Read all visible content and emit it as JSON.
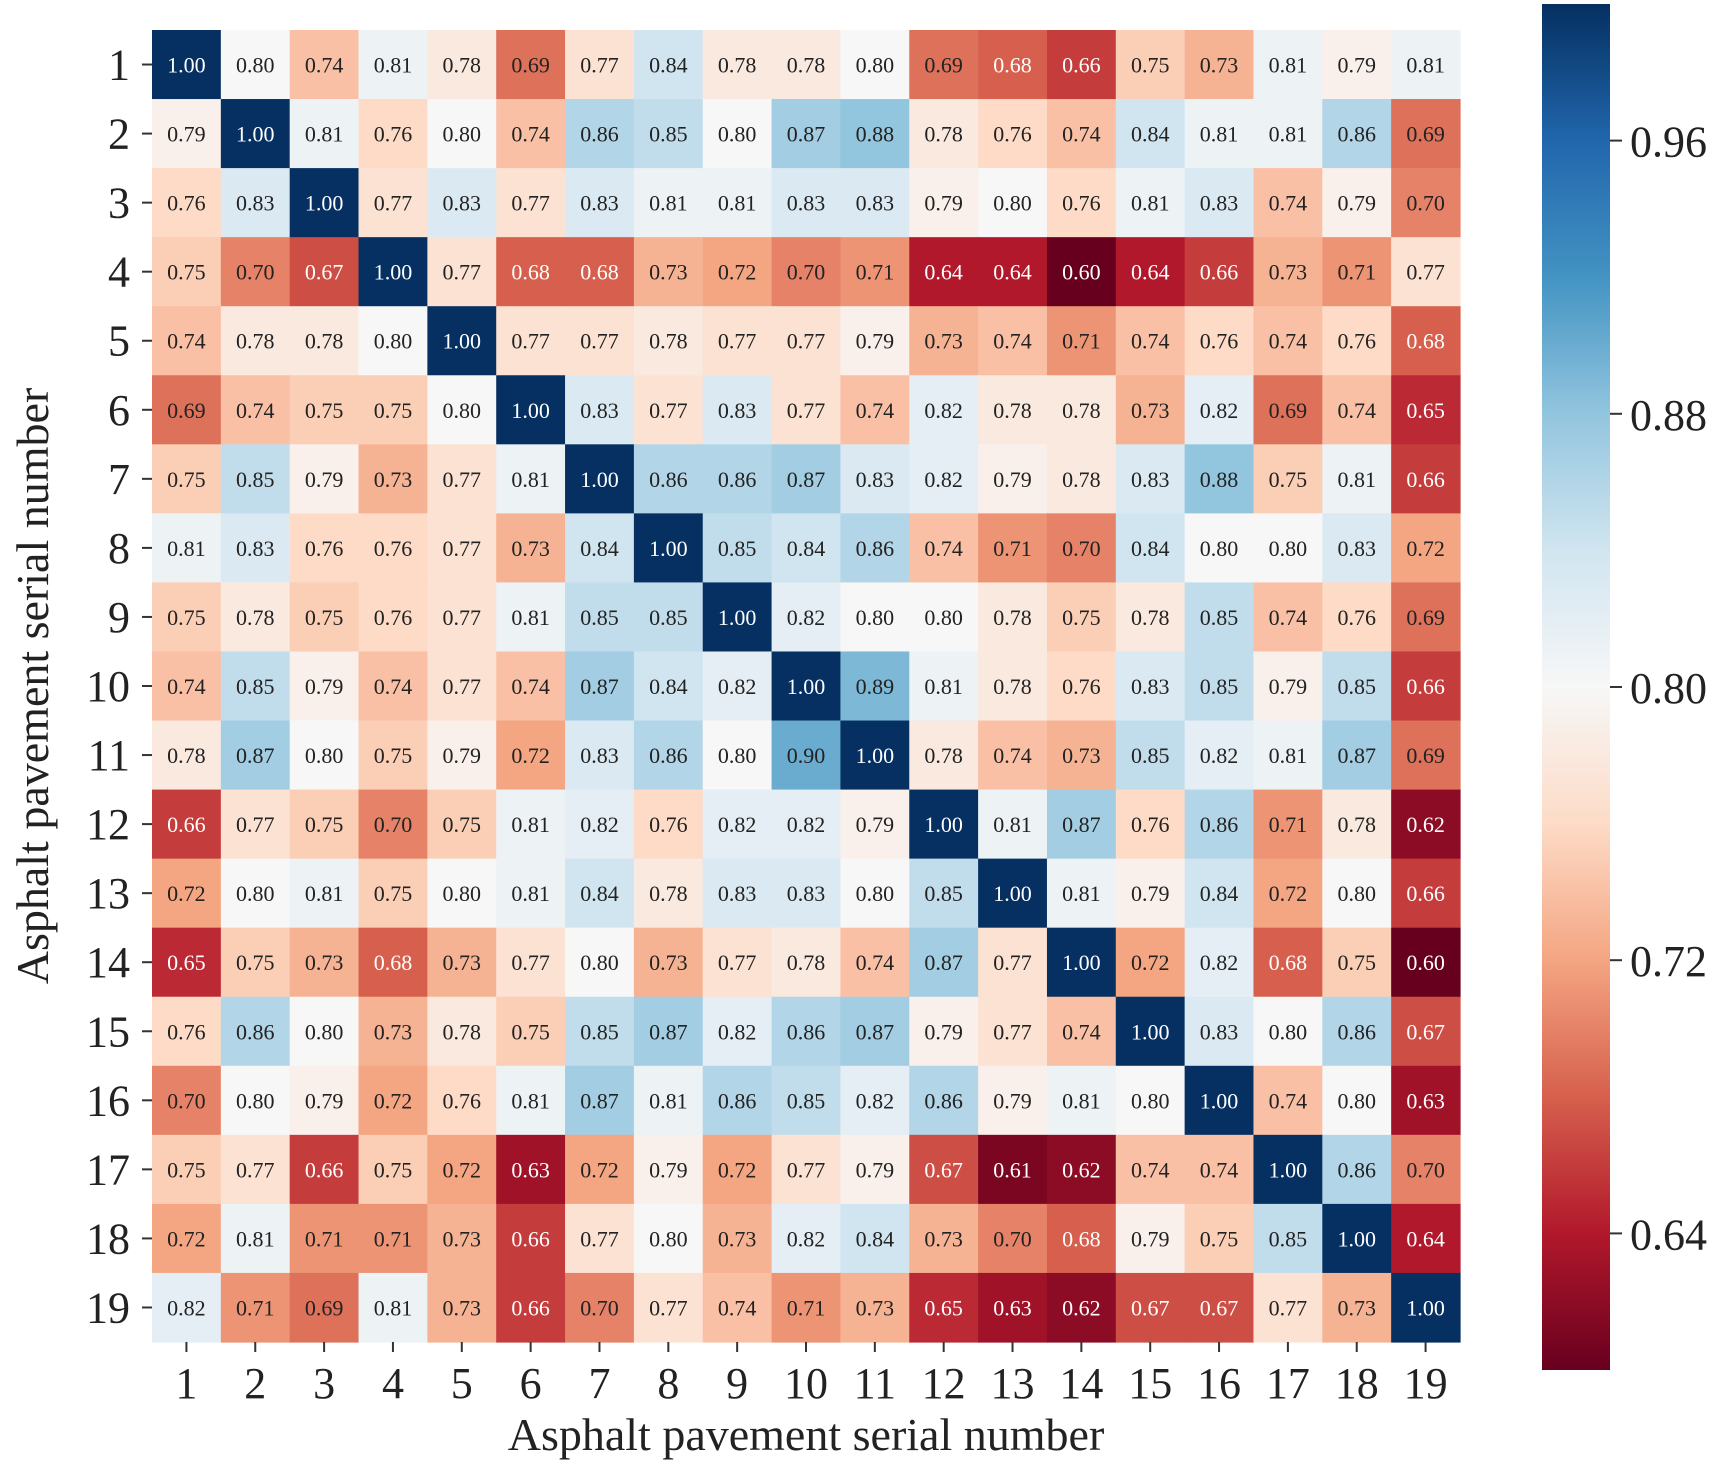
{
  "chart_data": {
    "type": "heatmap",
    "xlabel": "Asphalt pavement serial number",
    "ylabel": "Asphalt pavement serial number",
    "x_categories": [
      "1",
      "2",
      "3",
      "4",
      "5",
      "6",
      "7",
      "8",
      "9",
      "10",
      "11",
      "12",
      "13",
      "14",
      "15",
      "16",
      "17",
      "18",
      "19"
    ],
    "y_categories": [
      "1",
      "2",
      "3",
      "4",
      "5",
      "6",
      "7",
      "8",
      "9",
      "10",
      "11",
      "12",
      "13",
      "14",
      "15",
      "16",
      "17",
      "18",
      "19"
    ],
    "values": [
      [
        1.0,
        0.8,
        0.74,
        0.81,
        0.78,
        0.69,
        0.77,
        0.84,
        0.78,
        0.78,
        0.8,
        0.69,
        0.68,
        0.66,
        0.75,
        0.73,
        0.81,
        0.79,
        0.81
      ],
      [
        0.79,
        1.0,
        0.81,
        0.76,
        0.8,
        0.74,
        0.86,
        0.85,
        0.8,
        0.87,
        0.88,
        0.78,
        0.76,
        0.74,
        0.84,
        0.81,
        0.81,
        0.86,
        0.69
      ],
      [
        0.76,
        0.83,
        1.0,
        0.77,
        0.83,
        0.77,
        0.83,
        0.81,
        0.81,
        0.83,
        0.83,
        0.79,
        0.8,
        0.76,
        0.81,
        0.83,
        0.74,
        0.79,
        0.7
      ],
      [
        0.75,
        0.7,
        0.67,
        1.0,
        0.77,
        0.68,
        0.68,
        0.73,
        0.72,
        0.7,
        0.71,
        0.64,
        0.64,
        0.6,
        0.64,
        0.66,
        0.73,
        0.71,
        0.77
      ],
      [
        0.74,
        0.78,
        0.78,
        0.8,
        1.0,
        0.77,
        0.77,
        0.78,
        0.77,
        0.77,
        0.79,
        0.73,
        0.74,
        0.71,
        0.74,
        0.76,
        0.74,
        0.76,
        0.68
      ],
      [
        0.69,
        0.74,
        0.75,
        0.75,
        0.8,
        1.0,
        0.83,
        0.77,
        0.83,
        0.77,
        0.74,
        0.82,
        0.78,
        0.78,
        0.73,
        0.82,
        0.69,
        0.74,
        0.65
      ],
      [
        0.75,
        0.85,
        0.79,
        0.73,
        0.77,
        0.81,
        1.0,
        0.86,
        0.86,
        0.87,
        0.83,
        0.82,
        0.79,
        0.78,
        0.83,
        0.88,
        0.75,
        0.81,
        0.66
      ],
      [
        0.81,
        0.83,
        0.76,
        0.76,
        0.77,
        0.73,
        0.84,
        1.0,
        0.85,
        0.84,
        0.86,
        0.74,
        0.71,
        0.7,
        0.84,
        0.8,
        0.8,
        0.83,
        0.72
      ],
      [
        0.75,
        0.78,
        0.75,
        0.76,
        0.77,
        0.81,
        0.85,
        0.85,
        1.0,
        0.82,
        0.8,
        0.8,
        0.78,
        0.75,
        0.78,
        0.85,
        0.74,
        0.76,
        0.69
      ],
      [
        0.74,
        0.85,
        0.79,
        0.74,
        0.77,
        0.74,
        0.87,
        0.84,
        0.82,
        1.0,
        0.89,
        0.81,
        0.78,
        0.76,
        0.83,
        0.85,
        0.79,
        0.85,
        0.66
      ],
      [
        0.78,
        0.87,
        0.8,
        0.75,
        0.79,
        0.72,
        0.83,
        0.86,
        0.8,
        0.9,
        1.0,
        0.78,
        0.74,
        0.73,
        0.85,
        0.82,
        0.81,
        0.87,
        0.69
      ],
      [
        0.66,
        0.77,
        0.75,
        0.7,
        0.75,
        0.81,
        0.82,
        0.76,
        0.82,
        0.82,
        0.79,
        1.0,
        0.81,
        0.87,
        0.76,
        0.86,
        0.71,
        0.78,
        0.62
      ],
      [
        0.72,
        0.8,
        0.81,
        0.75,
        0.8,
        0.81,
        0.84,
        0.78,
        0.83,
        0.83,
        0.8,
        0.85,
        1.0,
        0.81,
        0.79,
        0.84,
        0.72,
        0.8,
        0.66
      ],
      [
        0.65,
        0.75,
        0.73,
        0.68,
        0.73,
        0.77,
        0.8,
        0.73,
        0.77,
        0.78,
        0.74,
        0.87,
        0.77,
        1.0,
        0.72,
        0.82,
        0.68,
        0.75,
        0.6
      ],
      [
        0.76,
        0.86,
        0.8,
        0.73,
        0.78,
        0.75,
        0.85,
        0.87,
        0.82,
        0.86,
        0.87,
        0.79,
        0.77,
        0.74,
        1.0,
        0.83,
        0.8,
        0.86,
        0.67
      ],
      [
        0.7,
        0.8,
        0.79,
        0.72,
        0.76,
        0.81,
        0.87,
        0.81,
        0.86,
        0.85,
        0.82,
        0.86,
        0.79,
        0.81,
        0.8,
        1.0,
        0.74,
        0.8,
        0.63
      ],
      [
        0.75,
        0.77,
        0.66,
        0.75,
        0.72,
        0.63,
        0.72,
        0.79,
        0.72,
        0.77,
        0.79,
        0.67,
        0.61,
        0.62,
        0.74,
        0.74,
        1.0,
        0.86,
        0.7
      ],
      [
        0.72,
        0.81,
        0.71,
        0.71,
        0.73,
        0.66,
        0.77,
        0.8,
        0.73,
        0.82,
        0.84,
        0.73,
        0.7,
        0.68,
        0.79,
        0.75,
        0.85,
        1.0,
        0.64
      ],
      [
        0.82,
        0.71,
        0.69,
        0.81,
        0.73,
        0.66,
        0.7,
        0.77,
        0.74,
        0.71,
        0.73,
        0.65,
        0.63,
        0.62,
        0.67,
        0.67,
        0.77,
        0.73,
        1.0
      ]
    ],
    "colorbar": {
      "ticks": [
        0.64,
        0.72,
        0.8,
        0.88,
        0.96
      ],
      "tick_labels": [
        "0.64",
        "0.72",
        "0.80",
        "0.88",
        "0.96"
      ],
      "vmin": 0.6,
      "vmax": 1.0,
      "colormap": "RdBu",
      "stops": [
        "#67001f",
        "#b2182b",
        "#d6604d",
        "#f4a582",
        "#fddbc7",
        "#f7f7f7",
        "#d1e5f0",
        "#92c5de",
        "#4393c3",
        "#2166ac",
        "#053061"
      ]
    },
    "grid": false,
    "legend": "right colorbar"
  }
}
